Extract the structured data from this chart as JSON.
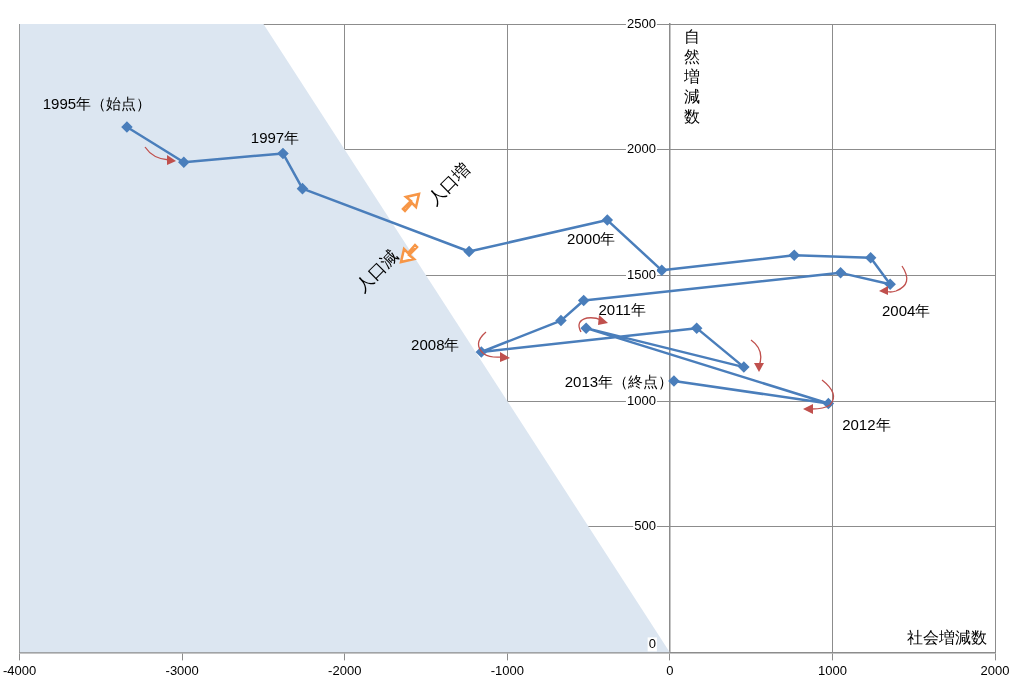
{
  "chart_data": {
    "type": "line",
    "xlabel": "社会増減数",
    "ylabel": "自然増減数",
    "xlim": [
      -4000,
      2000
    ],
    "xticks": [
      -4000,
      -3000,
      -2000,
      -1000,
      0,
      1000,
      2000
    ],
    "ylim": [
      0,
      2500
    ],
    "yticks": [
      0,
      500,
      1000,
      1500,
      2000,
      2500
    ],
    "grid": true,
    "legend": false,
    "line_style": "solid",
    "series": [
      {
        "type": "area",
        "color": "#dce6f1",
        "x": [
          -4000,
          -2500,
          0
        ],
        "values": [
          2500,
          2500,
          0
        ]
      },
      {
        "type": "line",
        "marker": "diamond",
        "color": "#4a7ebb",
        "x": [
          -3340,
          -2990,
          -2380,
          -2260,
          -1235,
          -385,
          -50,
          765,
          1235,
          1355,
          1050,
          -530,
          -670,
          -1160,
          165,
          455,
          -515,
          975,
          25
        ],
        "values": [
          2090,
          1950,
          1985,
          1845,
          1595,
          1720,
          1520,
          1580,
          1570,
          1465,
          1510,
          1400,
          1320,
          1195,
          1290,
          1135,
          1290,
          990,
          1080
        ]
      }
    ],
    "annotations": [
      {
        "text": "1995年（始点）",
        "x": -3340,
        "y": 2090
      },
      {
        "text": "1997年",
        "x": -2380,
        "y": 1985
      },
      {
        "text": "2000年",
        "x": -385,
        "y": 1720
      },
      {
        "text": "2004年",
        "x": 1355,
        "y": 1465
      },
      {
        "text": "2008年",
        "x": -1160,
        "y": 1195
      },
      {
        "text": "2011年",
        "x": -515,
        "y": 1290
      },
      {
        "text": "2012年",
        "x": 975,
        "y": 990
      },
      {
        "text": "2013年（終点）",
        "x": 25,
        "y": 1080
      },
      "人口増",
      "人口減"
    ]
  }
}
